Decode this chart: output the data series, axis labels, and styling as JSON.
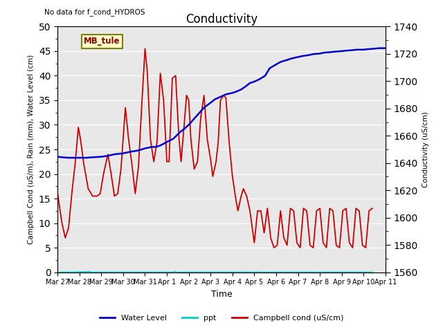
{
  "title": "Conductivity",
  "top_left_text": "No data for f_cond_HYDROS",
  "ylabel_left": "Campbell Cond (uS/m), Rain (mm), Water Level (cm)",
  "ylabel_right": "Conductivity (uS/cm)",
  "xlabel": "Time",
  "ylim_left": [
    0,
    50
  ],
  "ylim_right": [
    1560,
    1740
  ],
  "legend_box_label": "MB_tule",
  "background_color": "#e8e8e8",
  "water_level_color": "#0000cc",
  "ppt_color": "#00cccc",
  "campbell_color": "#cc0000",
  "water_level_data": [
    [
      0.0,
      23.5
    ],
    [
      0.2,
      23.4
    ],
    [
      0.5,
      23.3
    ],
    [
      0.8,
      23.3
    ],
    [
      1.0,
      23.3
    ],
    [
      1.3,
      23.3
    ],
    [
      1.6,
      23.4
    ],
    [
      2.0,
      23.5
    ],
    [
      2.3,
      23.7
    ],
    [
      2.6,
      24.0
    ],
    [
      3.0,
      24.2
    ],
    [
      3.3,
      24.5
    ],
    [
      3.7,
      24.8
    ],
    [
      4.0,
      25.2
    ],
    [
      4.3,
      25.5
    ],
    [
      4.5,
      25.5
    ],
    [
      4.7,
      25.8
    ],
    [
      5.0,
      26.5
    ],
    [
      5.3,
      27.2
    ],
    [
      5.6,
      28.5
    ],
    [
      5.8,
      29.2
    ],
    [
      6.0,
      30.0
    ],
    [
      6.2,
      31.0
    ],
    [
      6.5,
      32.5
    ],
    [
      6.7,
      33.5
    ],
    [
      7.0,
      34.5
    ],
    [
      7.2,
      35.2
    ],
    [
      7.5,
      35.8
    ],
    [
      7.7,
      36.2
    ],
    [
      8.0,
      36.5
    ],
    [
      8.2,
      36.8
    ],
    [
      8.4,
      37.2
    ],
    [
      8.6,
      37.8
    ],
    [
      8.8,
      38.5
    ],
    [
      9.0,
      38.8
    ],
    [
      9.2,
      39.2
    ],
    [
      9.5,
      40.0
    ],
    [
      9.7,
      41.5
    ],
    [
      10.0,
      42.3
    ],
    [
      10.2,
      42.8
    ],
    [
      10.5,
      43.2
    ],
    [
      10.7,
      43.5
    ],
    [
      11.0,
      43.8
    ],
    [
      11.2,
      44.0
    ],
    [
      11.5,
      44.2
    ],
    [
      11.7,
      44.4
    ],
    [
      12.0,
      44.5
    ],
    [
      12.2,
      44.7
    ],
    [
      12.5,
      44.8
    ],
    [
      12.7,
      44.9
    ],
    [
      13.0,
      45.0
    ],
    [
      13.2,
      45.1
    ],
    [
      13.5,
      45.2
    ],
    [
      13.7,
      45.3
    ],
    [
      14.0,
      45.3
    ],
    [
      14.2,
      45.4
    ],
    [
      14.5,
      45.5
    ],
    [
      14.7,
      45.6
    ],
    [
      15.0,
      45.6
    ]
  ],
  "campbell_data": [
    [
      0.0,
      16.0
    ],
    [
      0.2,
      10.0
    ],
    [
      0.35,
      7.0
    ],
    [
      0.5,
      9.0
    ],
    [
      0.65,
      16.0
    ],
    [
      0.8,
      22.0
    ],
    [
      0.95,
      29.5
    ],
    [
      1.05,
      27.0
    ],
    [
      1.2,
      22.0
    ],
    [
      1.4,
      17.0
    ],
    [
      1.6,
      15.5
    ],
    [
      1.8,
      15.5
    ],
    [
      1.95,
      16.0
    ],
    [
      2.1,
      20.0
    ],
    [
      2.3,
      24.0
    ],
    [
      2.45,
      20.0
    ],
    [
      2.6,
      15.5
    ],
    [
      2.75,
      16.0
    ],
    [
      2.9,
      21.0
    ],
    [
      3.1,
      33.5
    ],
    [
      3.25,
      27.0
    ],
    [
      3.4,
      22.0
    ],
    [
      3.55,
      16.0
    ],
    [
      3.7,
      21.5
    ],
    [
      3.85,
      34.0
    ],
    [
      4.0,
      45.5
    ],
    [
      4.1,
      41.0
    ],
    [
      4.25,
      27.0
    ],
    [
      4.4,
      22.5
    ],
    [
      4.55,
      26.5
    ],
    [
      4.7,
      40.5
    ],
    [
      4.85,
      35.0
    ],
    [
      5.0,
      22.5
    ],
    [
      5.1,
      22.5
    ],
    [
      5.25,
      39.5
    ],
    [
      5.4,
      40.0
    ],
    [
      5.55,
      27.5
    ],
    [
      5.65,
      22.5
    ],
    [
      5.8,
      30.5
    ],
    [
      5.9,
      36.0
    ],
    [
      6.0,
      35.0
    ],
    [
      6.1,
      27.0
    ],
    [
      6.25,
      21.0
    ],
    [
      6.4,
      22.5
    ],
    [
      6.55,
      31.5
    ],
    [
      6.7,
      36.0
    ],
    [
      6.85,
      27.0
    ],
    [
      7.0,
      23.0
    ],
    [
      7.1,
      19.5
    ],
    [
      7.25,
      22.5
    ],
    [
      7.35,
      26.5
    ],
    [
      7.45,
      35.0
    ],
    [
      7.6,
      36.0
    ],
    [
      7.7,
      35.5
    ],
    [
      7.85,
      26.5
    ],
    [
      8.0,
      19.5
    ],
    [
      8.15,
      15.0
    ],
    [
      8.25,
      12.5
    ],
    [
      8.4,
      15.5
    ],
    [
      8.5,
      17.0
    ],
    [
      8.65,
      15.5
    ],
    [
      8.8,
      12.5
    ],
    [
      9.0,
      6.0
    ],
    [
      9.15,
      12.5
    ],
    [
      9.3,
      12.5
    ],
    [
      9.45,
      8.0
    ],
    [
      9.6,
      13.0
    ],
    [
      9.75,
      7.0
    ],
    [
      9.9,
      5.0
    ],
    [
      10.05,
      5.5
    ],
    [
      10.2,
      12.5
    ],
    [
      10.35,
      7.0
    ],
    [
      10.5,
      5.5
    ],
    [
      10.65,
      13.0
    ],
    [
      10.8,
      12.5
    ],
    [
      10.95,
      6.0
    ],
    [
      11.1,
      5.0
    ],
    [
      11.25,
      13.0
    ],
    [
      11.4,
      12.5
    ],
    [
      11.55,
      5.5
    ],
    [
      11.7,
      5.0
    ],
    [
      11.85,
      12.5
    ],
    [
      12.0,
      13.0
    ],
    [
      12.15,
      6.0
    ],
    [
      12.3,
      5.0
    ],
    [
      12.45,
      13.0
    ],
    [
      12.6,
      12.5
    ],
    [
      12.75,
      5.5
    ],
    [
      12.9,
      5.0
    ],
    [
      13.05,
      12.5
    ],
    [
      13.2,
      13.0
    ],
    [
      13.35,
      6.0
    ],
    [
      13.5,
      5.0
    ],
    [
      13.65,
      13.0
    ],
    [
      13.8,
      12.5
    ],
    [
      13.95,
      5.5
    ],
    [
      14.1,
      5.0
    ],
    [
      14.25,
      12.5
    ],
    [
      14.4,
      13.0
    ]
  ],
  "ppt_data": [
    [
      0.0,
      0.0
    ],
    [
      0.5,
      0.0
    ],
    [
      1.5,
      0.1
    ],
    [
      1.51,
      0.0
    ],
    [
      5.3,
      0.0
    ],
    [
      5.35,
      0.15
    ],
    [
      5.4,
      0.0
    ],
    [
      8.5,
      0.0
    ],
    [
      8.55,
      0.05
    ],
    [
      8.6,
      0.0
    ],
    [
      9.1,
      0.0
    ],
    [
      9.15,
      0.05
    ],
    [
      9.2,
      0.0
    ],
    [
      14.4,
      0.0
    ]
  ],
  "x_labels": [
    "Mar 27",
    "Mar 28",
    "Mar 29",
    "Mar 30",
    "Mar 31",
    "Apr 1",
    "Apr 2",
    "Apr 3",
    "Apr 4",
    "Apr 5",
    "Apr 6",
    "Apr 7",
    "Apr 8",
    "Apr 9",
    "Apr 10",
    "Apr 11"
  ],
  "x_ticks": [
    0,
    1,
    2,
    3,
    4,
    5,
    6,
    7,
    8,
    9,
    10,
    11,
    12,
    13,
    14,
    15
  ],
  "right_major_ticks": [
    1560,
    1580,
    1600,
    1620,
    1640,
    1660,
    1680,
    1700,
    1720,
    1740
  ],
  "left_major_ticks": [
    0,
    5,
    10,
    15,
    20,
    25,
    30,
    35,
    40,
    45,
    50
  ]
}
